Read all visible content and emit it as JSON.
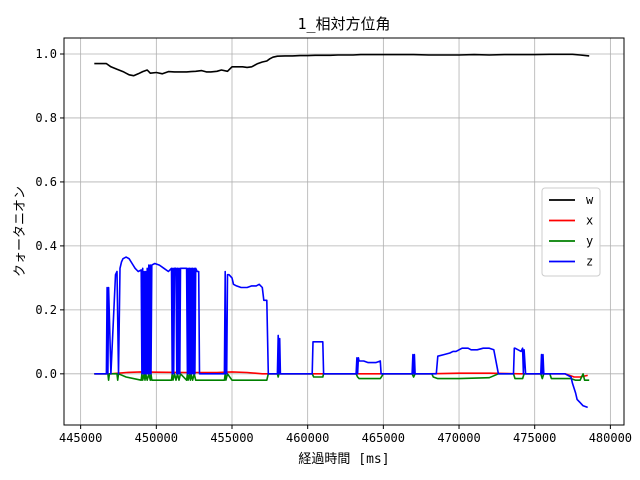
{
  "chart_data": {
    "type": "line",
    "title": "1_相対方位角",
    "xlabel": "経過時間 [ms]",
    "ylabel": "クォータニオン",
    "xlim": [
      443900,
      480900
    ],
    "ylim": [
      -0.16,
      1.05
    ],
    "xticks": [
      445000,
      450000,
      455000,
      460000,
      465000,
      470000,
      475000,
      480000
    ],
    "xtick_labels": [
      "445000",
      "450000",
      "455000",
      "460000",
      "465000",
      "470000",
      "475000",
      "480000"
    ],
    "yticks": [
      0.0,
      0.2,
      0.4,
      0.6,
      0.8,
      1.0
    ],
    "ytick_labels": [
      "0.0",
      "0.2",
      "0.4",
      "0.6",
      "0.8",
      "1.0"
    ],
    "grid": true,
    "legend_position": "center-right",
    "series": [
      {
        "name": "w",
        "color": "#000000",
        "x": [
          445900,
          446700,
          447000,
          447400,
          447800,
          448200,
          448500,
          448800,
          449100,
          449400,
          449600,
          450000,
          450400,
          450800,
          451200,
          451600,
          452000,
          452300,
          452600,
          453000,
          453300,
          453600,
          454000,
          454300,
          454700,
          455000,
          455300,
          455700,
          456000,
          456300,
          456700,
          457000,
          457300,
          457500,
          457700,
          458000,
          458500,
          459000,
          459500,
          460000,
          460500,
          461000,
          461500,
          462000,
          462500,
          463000,
          463500,
          464000,
          464500,
          465000,
          466000,
          467000,
          468000,
          469000,
          470000,
          471000,
          472000,
          473000,
          474000,
          475000,
          476000,
          477000,
          477500,
          478000,
          478600
        ],
        "y": [
          0.97,
          0.97,
          0.96,
          0.952,
          0.945,
          0.935,
          0.932,
          0.938,
          0.945,
          0.95,
          0.94,
          0.942,
          0.938,
          0.945,
          0.944,
          0.944,
          0.944,
          0.945,
          0.946,
          0.948,
          0.944,
          0.944,
          0.946,
          0.95,
          0.946,
          0.96,
          0.96,
          0.96,
          0.958,
          0.96,
          0.97,
          0.975,
          0.978,
          0.985,
          0.99,
          0.993,
          0.994,
          0.994,
          0.995,
          0.995,
          0.996,
          0.996,
          0.996,
          0.997,
          0.997,
          0.997,
          0.998,
          0.998,
          0.998,
          0.998,
          0.998,
          0.998,
          0.997,
          0.997,
          0.997,
          0.998,
          0.997,
          0.998,
          0.998,
          0.998,
          0.999,
          0.999,
          0.999,
          0.997,
          0.994
        ]
      },
      {
        "name": "x",
        "color": "#ff0000",
        "x": [
          445900,
          447000,
          448000,
          449000,
          450000,
          452000,
          454000,
          455000,
          456000,
          457000,
          458000,
          460000,
          462000,
          464000,
          466000,
          468000,
          470000,
          472000,
          474000,
          476000,
          477000,
          477600,
          478000,
          478500
        ],
        "y": [
          0.0,
          0.0,
          0.004,
          0.006,
          0.005,
          0.004,
          0.004,
          0.006,
          0.004,
          0.0,
          0.0,
          0.0,
          0.0,
          0.0,
          0.0,
          0.0,
          0.002,
          0.002,
          0.0,
          0.0,
          0.0,
          -0.01,
          -0.01,
          -0.005
        ]
      },
      {
        "name": "y",
        "color": "#008000",
        "x": [
          445900,
          446800,
          446850,
          446900,
          447000,
          447400,
          447450,
          447500,
          448000,
          449000,
          449050,
          449100,
          449200,
          449250,
          449300,
          449400,
          449500,
          449600,
          449650,
          449700,
          450000,
          451000,
          451050,
          451100,
          451200,
          451300,
          451400,
          451500,
          451600,
          452000,
          452050,
          452100,
          452200,
          452250,
          452300,
          452400,
          452500,
          452600,
          452800,
          454500,
          454550,
          454600,
          454700,
          455000,
          455500,
          457300,
          457400,
          458000,
          458050,
          458100,
          460300,
          460400,
          461000,
          461050,
          461100,
          463200,
          463300,
          463400,
          464800,
          465000,
          466900,
          467000,
          467100,
          468200,
          468300,
          468600,
          470000,
          472000,
          472600,
          473600,
          473700,
          474200,
          474300,
          474500,
          475400,
          475500,
          475600,
          476000,
          476100,
          477200,
          477400,
          477700,
          478000,
          478200,
          478300,
          478600
        ],
        "y": [
          0.0,
          0.0,
          -0.02,
          0.0,
          0.0,
          0.0,
          -0.02,
          0.0,
          -0.01,
          -0.02,
          0.0,
          -0.02,
          0.0,
          -0.02,
          0.0,
          -0.02,
          0.0,
          -0.02,
          0.0,
          -0.02,
          -0.02,
          -0.02,
          0.0,
          -0.02,
          0.0,
          -0.02,
          0.0,
          -0.02,
          0.0,
          -0.02,
          0.0,
          -0.02,
          0.0,
          -0.02,
          0.0,
          -0.02,
          0.0,
          -0.02,
          -0.02,
          -0.02,
          0.0,
          -0.02,
          0.0,
          -0.02,
          -0.02,
          -0.02,
          0.0,
          0.0,
          -0.01,
          0.0,
          0.0,
          -0.01,
          -0.01,
          0.0,
          0.0,
          0.0,
          -0.01,
          -0.015,
          -0.015,
          0.0,
          0.0,
          -0.01,
          0.0,
          0.0,
          -0.01,
          -0.015,
          -0.015,
          -0.012,
          0.0,
          0.0,
          -0.015,
          -0.015,
          0.0,
          0.0,
          0.0,
          -0.015,
          0.0,
          0.0,
          -0.015,
          -0.015,
          -0.015,
          -0.02,
          -0.02,
          0.0,
          -0.02,
          -0.02
        ]
      },
      {
        "name": "z",
        "color": "#0000ff",
        "x": [
          445900,
          446700,
          446750,
          446800,
          446850,
          447000,
          447300,
          447400,
          447500,
          447600,
          447700,
          447800,
          448000,
          448200,
          448400,
          448600,
          448800,
          449000,
          449050,
          449100,
          449150,
          449200,
          449250,
          449300,
          449350,
          449400,
          449450,
          449500,
          449550,
          449600,
          449650,
          449700,
          449900,
          450200,
          450500,
          450800,
          451000,
          451050,
          451100,
          451150,
          451200,
          451300,
          451350,
          451400,
          451450,
          451500,
          451550,
          451600,
          451700,
          452000,
          452050,
          452100,
          452150,
          452200,
          452250,
          452300,
          452350,
          452400,
          452450,
          452500,
          452550,
          452600,
          452700,
          452800,
          452850,
          454500,
          454550,
          454600,
          454650,
          454700,
          454800,
          455000,
          455100,
          455300,
          455600,
          456000,
          456300,
          456600,
          456800,
          457000,
          457100,
          457300,
          457400,
          458000,
          458050,
          458100,
          458150,
          458200,
          458300,
          460300,
          460350,
          460400,
          460800,
          461000,
          461050,
          461100,
          463200,
          463250,
          463300,
          463350,
          463400,
          463700,
          464000,
          464500,
          464800,
          464850,
          466900,
          466950,
          467000,
          467050,
          467100,
          468000,
          468500,
          468600,
          469000,
          469400,
          469600,
          469800,
          470200,
          470600,
          470800,
          471200,
          471600,
          472000,
          472300,
          472600,
          473600,
          473650,
          473700,
          473900,
          474100,
          474200,
          474250,
          474300,
          474400,
          475400,
          475450,
          475500,
          475550,
          475600,
          476000,
          476300,
          477000,
          477400,
          477500,
          477700,
          477800,
          478000,
          478200,
          478500
        ],
        "y": [
          0.0,
          0.0,
          0.27,
          0.0,
          0.27,
          0.0,
          0.31,
          0.32,
          0.0,
          0.33,
          0.35,
          0.36,
          0.365,
          0.36,
          0.345,
          0.33,
          0.32,
          0.325,
          0.0,
          0.33,
          0.0,
          0.32,
          0.0,
          0.32,
          0.0,
          0.33,
          0.0,
          0.34,
          0.0,
          0.34,
          0.0,
          0.34,
          0.345,
          0.34,
          0.33,
          0.32,
          0.33,
          0.0,
          0.33,
          0.0,
          0.33,
          0.33,
          0.0,
          0.33,
          0.0,
          0.33,
          0.0,
          0.33,
          0.33,
          0.33,
          0.0,
          0.33,
          0.0,
          0.33,
          0.0,
          0.33,
          0.0,
          0.33,
          0.0,
          0.33,
          0.0,
          0.33,
          0.32,
          0.32,
          0.0,
          0.0,
          0.32,
          0.0,
          0.0,
          0.31,
          0.31,
          0.3,
          0.28,
          0.275,
          0.27,
          0.27,
          0.275,
          0.275,
          0.28,
          0.27,
          0.23,
          0.23,
          0.0,
          0.0,
          0.12,
          0.0,
          0.11,
          0.0,
          0.0,
          0.0,
          0.1,
          0.1,
          0.1,
          0.1,
          0.0,
          0.0,
          0.0,
          0.05,
          0.0,
          0.05,
          0.04,
          0.04,
          0.035,
          0.035,
          0.04,
          0.0,
          0.0,
          0.06,
          0.0,
          0.06,
          0.0,
          0.0,
          0.0,
          0.055,
          0.06,
          0.065,
          0.07,
          0.07,
          0.08,
          0.08,
          0.075,
          0.075,
          0.08,
          0.08,
          0.075,
          0.0,
          0.0,
          0.08,
          0.08,
          0.075,
          0.07,
          0.08,
          0.0,
          0.075,
          0.0,
          0.0,
          0.06,
          0.0,
          0.06,
          0.0,
          0.0,
          0.0,
          0.0,
          -0.01,
          -0.03,
          -0.06,
          -0.08,
          -0.09,
          -0.1,
          -0.105
        ]
      }
    ]
  }
}
